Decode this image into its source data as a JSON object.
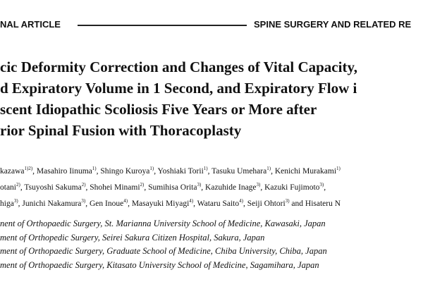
{
  "header": {
    "left": "NAL ARTICLE",
    "right": "SPINE SURGERY AND RELATED RE"
  },
  "title": {
    "lines": [
      "cic Deformity Correction and Changes of Vital Capacity,",
      "d Expiratory Volume in 1 Second, and Expiratory Flow i",
      "scent Idiopathic Scoliosis Five Years or More after",
      "rior Spinal Fusion with Thoracoplasty"
    ]
  },
  "authors": {
    "lines": [
      [
        {
          "name": "kazawa",
          "sup": "1)2)",
          "after": ", "
        },
        {
          "name": "Masahiro Iinuma",
          "sup": "1)",
          "after": ", "
        },
        {
          "name": "Shingo Kuroya",
          "sup": "1)",
          "after": ", "
        },
        {
          "name": "Yoshiaki Torii",
          "sup": "1)",
          "after": ", "
        },
        {
          "name": "Tasuku Umehara",
          "sup": "1)",
          "after": ", "
        },
        {
          "name": "Kenichi Murakami",
          "sup": "1)"
        }
      ],
      [
        {
          "name": "otani",
          "sup": "2)",
          "after": ", "
        },
        {
          "name": "Tsuyoshi Sakuma",
          "sup": "2)",
          "after": ", "
        },
        {
          "name": "Shohei Minami",
          "sup": "2)",
          "after": ", "
        },
        {
          "name": "Sumihisa Orita",
          "sup": "3)",
          "after": ", "
        },
        {
          "name": "Kazuhide Inage",
          "sup": "3)",
          "after": ", "
        },
        {
          "name": "Kazuki Fujimoto",
          "sup": "3)",
          "after": ","
        }
      ],
      [
        {
          "name": "higa",
          "sup": "3)",
          "after": ", "
        },
        {
          "name": "Junichi Nakamura",
          "sup": "3)",
          "after": ", "
        },
        {
          "name": "Gen Inoue",
          "sup": "4)",
          "after": ", "
        },
        {
          "name": "Masayuki Miyagi",
          "sup": "4)",
          "after": ", "
        },
        {
          "name": "Wataru Saito",
          "sup": "4)",
          "after": ", "
        },
        {
          "name": "Seiji Ohtori",
          "sup": "3)",
          "after": " and "
        },
        {
          "name": "Hisateru N"
        }
      ]
    ]
  },
  "affiliations": [
    "nent of Orthopaedic Surgery, St. Marianna University School of Medicine, Kawasaki, Japan",
    "ment of Orthopedic Surgery, Seirei Sakura Citizen Hospital, Sakura, Japan",
    "ment of Orthopaedic Surgery, Graduate School of Medicine, Chiba University, Chiba, Japan",
    "ment of Orthopaedic Surgery, Kitasato University School of Medicine, Sagamihara, Japan"
  ]
}
